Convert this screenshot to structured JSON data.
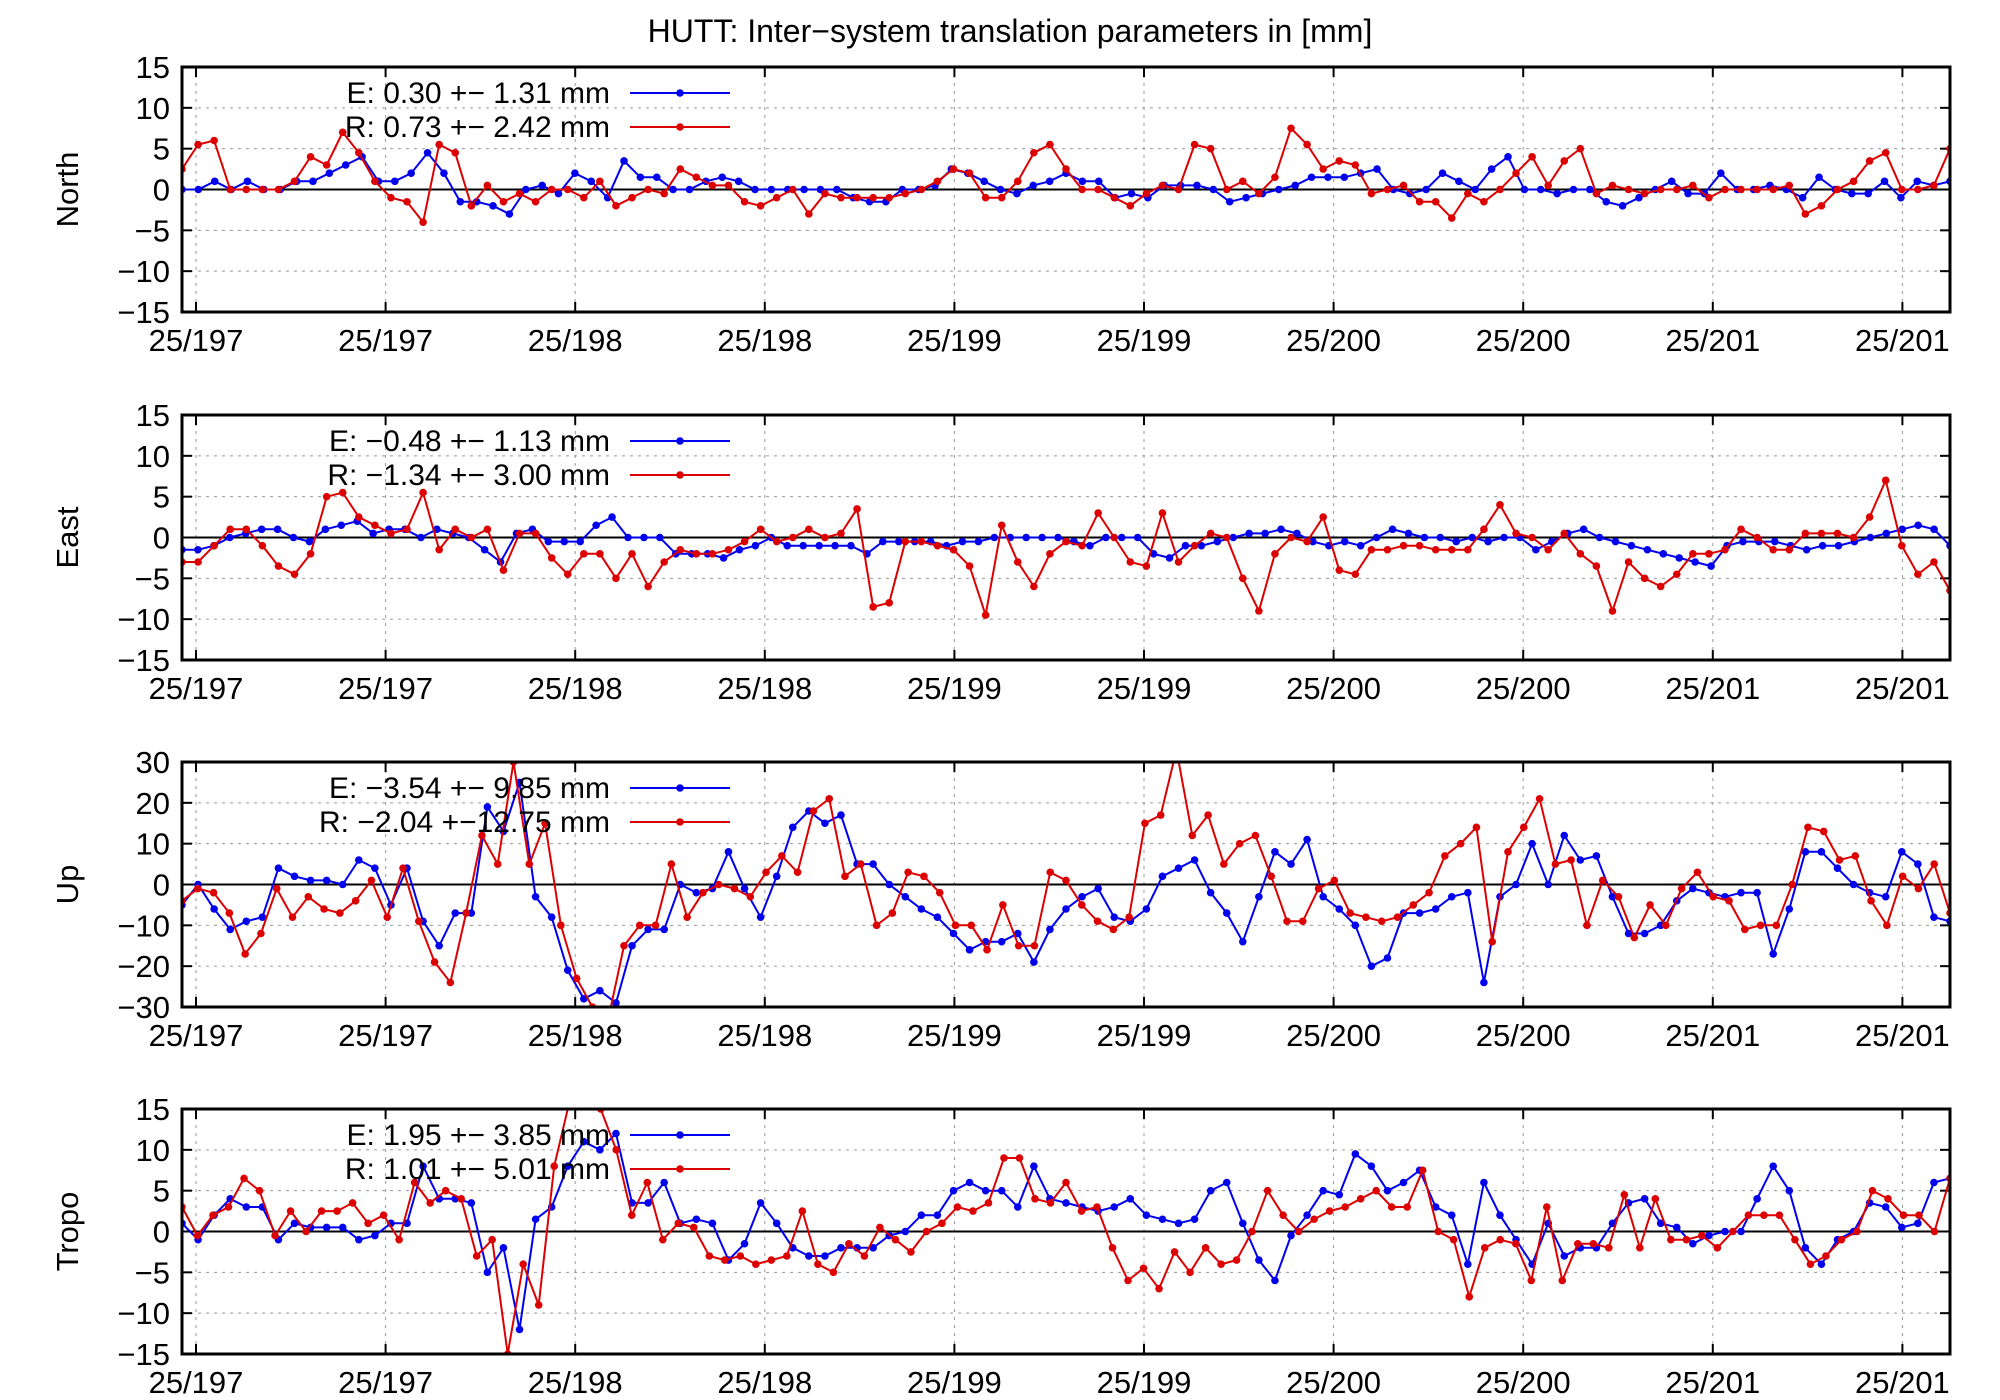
{
  "title": "HUTT: Inter−system translation parameters in [mm]",
  "chart_data": [
    {
      "type": "line",
      "ylabel": "North",
      "ylim": [
        -15,
        15
      ],
      "yticks": [
        15,
        10,
        5,
        0,
        -5,
        -10,
        -15
      ],
      "x_tick_labels": [
        "25/197",
        "25/197",
        "25/198",
        "25/198",
        "25/199",
        "25/199",
        "25/200",
        "25/200",
        "25/201",
        "25/201"
      ],
      "legend": [
        {
          "label": "E:   0.30 +− 1.31 mm",
          "color": "#0000ee"
        },
        {
          "label": "R:  0.73 +− 2.42 mm",
          "color": "#dd0000"
        }
      ],
      "series": [
        {
          "name": "E",
          "color": "#0000ee",
          "values": [
            0,
            0,
            1,
            0,
            1,
            0,
            0,
            1,
            1,
            2,
            3,
            4,
            1,
            1,
            2,
            4.5,
            2,
            -1.5,
            -1.5,
            -2,
            -3,
            0,
            0.5,
            -0.5,
            2,
            1,
            -1,
            3.5,
            1.5,
            1.5,
            0,
            0,
            1,
            1.5,
            1,
            0,
            0,
            0,
            0,
            0,
            0,
            -1,
            -1.5,
            -1.5,
            0,
            0,
            0.5,
            2.5,
            2,
            1,
            0,
            -0.5,
            0.5,
            1,
            2,
            1,
            1,
            -1,
            -0.5,
            -1,
            0.5,
            0.5,
            0.5,
            0,
            -1.5,
            -1,
            -0.5,
            0,
            0.5,
            1.5,
            1.5,
            1.5,
            2,
            2.5,
            0,
            -0.5,
            0,
            2,
            1,
            0,
            2.5,
            4,
            0,
            0,
            -0.5,
            0,
            0,
            -1.5,
            -2,
            -1,
            0,
            1,
            -0.5,
            -0.5,
            2,
            0,
            0,
            0.5,
            0,
            -1,
            1.5,
            0,
            -0.5,
            -0.5,
            1,
            -1,
            1,
            0.5,
            1
          ]
        },
        {
          "name": "R",
          "color": "#dd0000",
          "values": [
            2.5,
            5.5,
            6,
            0,
            0,
            0,
            0,
            1,
            4,
            3,
            7,
            4.5,
            1,
            -1,
            -1.5,
            -4,
            5.5,
            4.5,
            -2,
            0.5,
            -1.5,
            -0.5,
            -1.5,
            0,
            0,
            -1,
            1,
            -2,
            -1,
            0,
            -0.5,
            2.5,
            1.5,
            0.5,
            0.5,
            -1.5,
            -2,
            -1,
            0,
            -3,
            -0.5,
            -1,
            -1,
            -1,
            -1,
            -0.5,
            0,
            1,
            2.5,
            2,
            -1,
            -1,
            1,
            4.5,
            5.5,
            2.5,
            0,
            0,
            -1,
            -2,
            -0.5,
            0.5,
            0,
            5.5,
            5,
            0,
            1,
            -0.5,
            1.5,
            7.5,
            5.5,
            2.5,
            3.5,
            3,
            -0.5,
            0,
            0.5,
            -1.5,
            -1.5,
            -3.5,
            -0.5,
            -1.5,
            0,
            2,
            4,
            0.5,
            3.5,
            5,
            -0.5,
            0.5,
            0,
            -0.5,
            0,
            0,
            0.5,
            -1,
            0,
            0,
            0,
            0,
            0.5,
            -3,
            -2,
            0,
            1,
            3.5,
            4.5,
            0,
            0,
            0.5,
            5
          ]
        }
      ]
    },
    {
      "type": "line",
      "ylabel": "East",
      "ylim": [
        -15,
        15
      ],
      "yticks": [
        15,
        10,
        5,
        0,
        -5,
        -10,
        -15
      ],
      "x_tick_labels": [
        "25/197",
        "25/197",
        "25/198",
        "25/198",
        "25/199",
        "25/199",
        "25/200",
        "25/200",
        "25/201",
        "25/201"
      ],
      "legend": [
        {
          "label": "E:  −0.48 +− 1.13 mm",
          "color": "#0000ee"
        },
        {
          "label": "R:  −1.34 +− 3.00 mm",
          "color": "#dd0000"
        }
      ],
      "series": [
        {
          "name": "E",
          "color": "#0000ee",
          "values": [
            -1.5,
            -1.5,
            -1,
            0,
            0.5,
            1,
            1,
            0,
            -0.5,
            1,
            1.5,
            2,
            0.5,
            1,
            1,
            0,
            1,
            0.5,
            0,
            -1.5,
            -3,
            0.5,
            1,
            -0.5,
            -0.5,
            -0.5,
            1.5,
            2.5,
            0,
            0,
            0,
            -2,
            -2,
            -2,
            -2.5,
            -1.5,
            -1,
            0,
            -1,
            -1,
            -1,
            -1,
            -1,
            -2,
            -0.5,
            -0.5,
            -0.5,
            -0.5,
            -1,
            -0.5,
            -0.5,
            0,
            0,
            0,
            0,
            0,
            -0.5,
            -1,
            0,
            0,
            0,
            -2,
            -2.5,
            -1,
            -1,
            -0.5,
            0,
            0.5,
            0.5,
            1,
            0.5,
            -0.5,
            -1,
            -0.5,
            -1,
            0,
            1,
            0.5,
            0,
            0,
            -0.5,
            0,
            -0.5,
            0,
            0,
            -1.5,
            -0.5,
            0.5,
            1,
            0,
            -0.5,
            -1,
            -1.5,
            -2,
            -2.5,
            -3,
            -3.5,
            -1,
            -0.5,
            -0.5,
            -0.5,
            -1,
            -1.5,
            -1,
            -1,
            -0.5,
            0,
            0.5,
            1,
            1.5,
            1,
            -1
          ]
        },
        {
          "name": "R",
          "color": "#dd0000",
          "values": [
            -3,
            -3,
            -1,
            1,
            1,
            -1,
            -3.5,
            -4.5,
            -2,
            5,
            5.5,
            2.5,
            1.5,
            0.5,
            1,
            5.5,
            -1.5,
            1,
            0,
            1,
            -4,
            0.5,
            0.5,
            -2.5,
            -4.5,
            -2,
            -2,
            -5,
            -2,
            -6,
            -3,
            -1.5,
            -2,
            -2,
            -1.5,
            -0.5,
            1,
            -0.5,
            0,
            1,
            0,
            0.5,
            3.5,
            -8.5,
            -8,
            -0.5,
            -0.5,
            -1,
            -1.5,
            -3.5,
            -9.5,
            1.5,
            -3,
            -6,
            -2,
            -0.5,
            -1,
            3,
            0,
            -3,
            -3.5,
            3,
            -3,
            -1,
            0.5,
            0,
            -5,
            -9,
            -2,
            0,
            -0.5,
            2.5,
            -4,
            -4.5,
            -1.5,
            -1.5,
            -1,
            -1,
            -1.5,
            -1.5,
            -1.5,
            1,
            4,
            0.5,
            0,
            -1.5,
            0.5,
            -2,
            -3.5,
            -9,
            -3,
            -5,
            -6,
            -4.5,
            -2,
            -2,
            -1.5,
            1,
            0,
            -1.5,
            -1.5,
            0.5,
            0.5,
            0.5,
            0,
            2.5,
            7,
            -1,
            -4.5,
            -3,
            -6.5
          ]
        }
      ]
    },
    {
      "type": "line",
      "ylabel": "Up",
      "ylim": [
        -30,
        30
      ],
      "yticks": [
        30,
        20,
        10,
        0,
        -10,
        -20,
        -30
      ],
      "x_tick_labels": [
        "25/197",
        "25/197",
        "25/198",
        "25/198",
        "25/199",
        "25/199",
        "25/200",
        "25/200",
        "25/201",
        "25/201"
      ],
      "legend": [
        {
          "label": "E:  −3.54 +− 9.85 mm",
          "color": "#0000ee"
        },
        {
          "label": "R:  −2.04 +−12.75 mm",
          "color": "#dd0000"
        }
      ],
      "series": [
        {
          "name": "E",
          "color": "#0000ee",
          "values": [
            -5,
            0,
            -6,
            -11,
            -9,
            -8,
            4,
            2,
            1,
            1,
            0,
            6,
            4,
            -5,
            4,
            -9,
            -15,
            -7,
            -7,
            19,
            13,
            25,
            -3,
            -8,
            -21,
            -28,
            -26,
            -29,
            -15,
            -11,
            -11,
            0,
            -2,
            -1,
            8,
            -1,
            -8,
            2,
            14,
            18,
            15,
            17,
            5,
            5,
            0,
            -3,
            -6,
            -8,
            -12,
            -16,
            -14,
            -14,
            -12,
            -19,
            -11,
            -6,
            -3,
            -1,
            -8,
            -9,
            -6,
            2,
            4,
            6,
            -2,
            -7,
            -14,
            -3,
            8,
            5,
            11,
            -3,
            -6,
            -10,
            -20,
            -18,
            -7,
            -7,
            -6,
            -3,
            -2,
            -24,
            -3,
            0,
            10,
            0,
            12,
            6,
            7,
            -3,
            -12,
            -12,
            -10,
            -4,
            -1,
            -2,
            -3,
            -2,
            -2,
            -17,
            -6,
            8,
            8,
            4,
            0,
            -2,
            -3,
            8,
            5,
            -8,
            -9
          ]
        },
        {
          "name": "R",
          "color": "#dd0000",
          "values": [
            -4,
            -1,
            -2,
            -7,
            -17,
            -12,
            -1,
            -8,
            -3,
            -6,
            -7,
            -4,
            1,
            -8,
            4,
            -9,
            -19,
            -24,
            -7,
            12,
            5,
            30,
            5,
            15,
            -10,
            -23,
            -30,
            -33,
            -15,
            -10,
            -10,
            5,
            -8,
            -2,
            0,
            -1,
            -3,
            3,
            7,
            3,
            18,
            21,
            2,
            5,
            -10,
            -7,
            3,
            2,
            -2,
            -10,
            -10,
            -16,
            -5,
            -15,
            -15,
            3,
            1,
            -5,
            -9,
            -11,
            -8,
            15,
            17,
            33,
            12,
            17,
            5,
            10,
            12,
            2,
            -9,
            -9,
            -1,
            1,
            -7,
            -8,
            -9,
            -8,
            -5,
            -2,
            7,
            10,
            14,
            -14,
            8,
            14,
            21,
            5,
            6,
            -10,
            1,
            -3,
            -13,
            -5,
            -10,
            -1,
            3,
            -3,
            -4,
            -11,
            -10,
            -10,
            0,
            14,
            13,
            6,
            7,
            -4,
            -10,
            2,
            -1,
            5,
            -7
          ]
        }
      ]
    },
    {
      "type": "line",
      "ylabel": "Tropo",
      "ylim": [
        -15,
        15
      ],
      "yticks": [
        15,
        10,
        5,
        0,
        -5,
        -10,
        -15
      ],
      "x_tick_labels": [
        "25/197",
        "25/197",
        "25/198",
        "25/198",
        "25/199",
        "25/199",
        "25/200",
        "25/200",
        "25/201",
        "25/201"
      ],
      "legend": [
        {
          "label": "E:   1.95 +− 3.85 mm",
          "color": "#0000ee"
        },
        {
          "label": "R:   1.01 +− 5.01 mm",
          "color": "#dd0000"
        }
      ],
      "series": [
        {
          "name": "E",
          "color": "#0000ee",
          "values": [
            1,
            -1,
            2,
            4,
            3,
            3,
            -1,
            1,
            0.5,
            0.5,
            0.5,
            -1,
            -0.5,
            1,
            1,
            8,
            4,
            4,
            3.5,
            -5,
            -2,
            -12,
            1.5,
            3,
            8,
            11,
            10,
            12,
            3.5,
            3.5,
            6,
            1,
            1.5,
            1,
            -3.5,
            -1.5,
            3.5,
            1,
            -2,
            -3,
            -3,
            -2,
            -2,
            -2,
            -0.5,
            0,
            2,
            2,
            5,
            6,
            5,
            5,
            3,
            8,
            4,
            3.5,
            3,
            2.5,
            3,
            4,
            2,
            1.5,
            1,
            1.5,
            5,
            6,
            1,
            -3.5,
            -6,
            -0.5,
            2,
            5,
            4.5,
            9.5,
            8,
            5,
            6,
            7.5,
            3,
            2,
            -4,
            6,
            2,
            -1,
            -4,
            1,
            -3,
            -2,
            -2,
            1,
            3.5,
            4,
            1,
            0.5,
            -1.5,
            -0.5,
            0,
            0,
            4,
            8,
            5,
            -2,
            -4,
            -1,
            0,
            3.5,
            3,
            0.5,
            1,
            6,
            6.5
          ]
        },
        {
          "name": "R",
          "color": "#dd0000",
          "values": [
            3,
            -0.5,
            2,
            3,
            6.5,
            5,
            -0.5,
            2.5,
            0,
            2.5,
            2.5,
            3.5,
            1,
            2,
            -1,
            6,
            3.5,
            5,
            4,
            -3,
            -1,
            -15,
            -4,
            -9,
            8,
            16,
            17,
            15,
            10,
            2,
            6,
            -1,
            1,
            0.5,
            -3,
            -3.5,
            -3,
            -4,
            -3.5,
            -3,
            2.5,
            -4,
            -5,
            -1.5,
            -3,
            0.5,
            -1,
            -2.5,
            0,
            1,
            3,
            2.5,
            3.5,
            9,
            9,
            4,
            3.5,
            6,
            2.5,
            3,
            -2,
            -6,
            -4.5,
            -7,
            -2.5,
            -5,
            -2,
            -4,
            -3.5,
            0,
            5,
            2,
            0,
            1.5,
            2.5,
            3,
            4,
            5,
            3,
            3,
            7.5,
            0,
            -1,
            -8,
            -2,
            -1,
            -1.5,
            -6,
            3,
            -6,
            -1.5,
            -1.5,
            -2,
            4.5,
            -2,
            4,
            -1,
            -1,
            -0.5,
            -2,
            0,
            2,
            2,
            2,
            -1,
            -4,
            -3,
            -1,
            0,
            5,
            4,
            2,
            2,
            0,
            6.5
          ]
        }
      ]
    }
  ]
}
